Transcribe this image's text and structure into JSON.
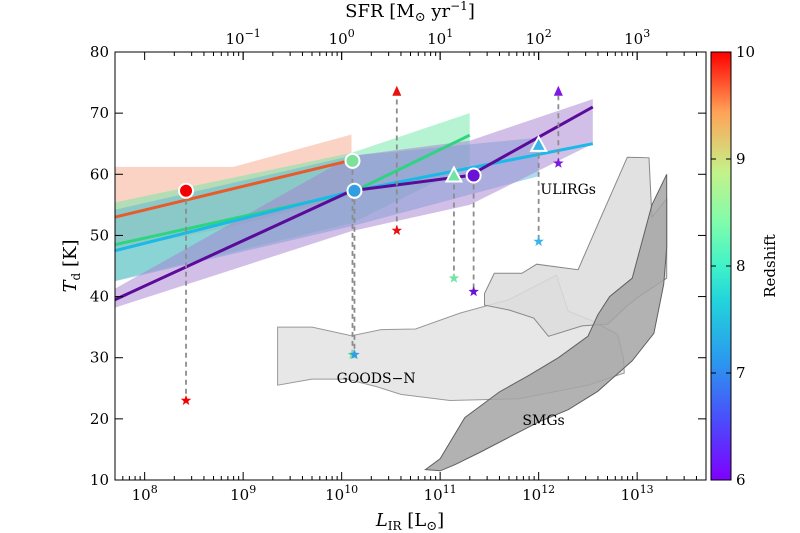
{
  "chart_data": {
    "type": "line",
    "title": "",
    "xlabel": "L_IR [L_⊙]",
    "xlabel_main": "L",
    "xlabel_sub": "IR",
    "xlabel_unit": " [L",
    "xlabel_unit_sub": "⊙",
    "xlabel_close": "]",
    "top_xlabel": "SFR [M_⊙ yr^-1]",
    "top_xlabel_parts": {
      "a": "SFR [M",
      "sun": "⊙",
      "b": " yr",
      "exp": "−1",
      "c": "]"
    },
    "ylabel": "T_d [K]",
    "ylabel_main": "T",
    "ylabel_sub": "d",
    "ylabel_unit": " [K]",
    "xscale": "log",
    "xlim": [
      50000000,
      50000000000000
    ],
    "ylim": [
      10,
      80
    ],
    "x_ticks": [
      {
        "exp": 8,
        "base": "10",
        "sup": "8"
      },
      {
        "exp": 9,
        "base": "10",
        "sup": "9"
      },
      {
        "exp": 10,
        "base": "10",
        "sup": "10"
      },
      {
        "exp": 11,
        "base": "10",
        "sup": "11"
      },
      {
        "exp": 12,
        "base": "10",
        "sup": "12"
      },
      {
        "exp": 13,
        "base": "10",
        "sup": "13"
      }
    ],
    "y_ticks": [
      "10",
      "20",
      "30",
      "40",
      "50",
      "60",
      "70",
      "80"
    ],
    "top_ticks": [
      {
        "sfr_exp": -1,
        "base": "10",
        "sup": "−1"
      },
      {
        "sfr_exp": 0,
        "base": "10",
        "sup": "0"
      },
      {
        "sfr_exp": 1,
        "base": "10",
        "sup": "1"
      },
      {
        "sfr_exp": 2,
        "base": "10",
        "sup": "2"
      },
      {
        "sfr_exp": 3,
        "base": "10",
        "sup": "3"
      }
    ],
    "sfr_to_lir_offset": 10,
    "colorbar": {
      "label": "Redshift",
      "min": 6,
      "max": 10,
      "ticks": [
        "6",
        "7",
        "8",
        "9",
        "10"
      ]
    },
    "series": [
      {
        "z": 10,
        "color": "#e85a2a",
        "band_color": "#f7a789",
        "line": [
          [
            7.7,
            53
          ],
          [
            10.1,
            62.3
          ]
        ],
        "band": [
          [
            7.7,
            47.6,
            61.2
          ],
          [
            8.9,
            51.5,
            61.2
          ],
          [
            10.1,
            56.5,
            66.5
          ]
        ]
      },
      {
        "z": 8,
        "color": "#2ed47f",
        "band_color": "#6de8a8",
        "line": [
          [
            7.7,
            48.5
          ],
          [
            10.1,
            57
          ],
          [
            11.3,
            66.4
          ]
        ],
        "band": [
          [
            7.7,
            42.6,
            55.4
          ],
          [
            10.1,
            52,
            63.5
          ],
          [
            11.3,
            61.5,
            70
          ]
        ]
      },
      {
        "z": 7,
        "color": "#1ab9e6",
        "band_color": "#5fb6d9",
        "line": [
          [
            7.7,
            47.5
          ],
          [
            10.1,
            57.2
          ],
          [
            12.55,
            65
          ]
        ],
        "band": [
          [
            7.7,
            42.5,
            54.2
          ],
          [
            10.1,
            51.5,
            63
          ],
          [
            12.0,
            59.7,
            66
          ]
        ]
      },
      {
        "z": 6,
        "color": "#5b0a99",
        "band_color": "#a57fd0",
        "line": [
          [
            7.7,
            39.5
          ],
          [
            10.1,
            57.3
          ],
          [
            11.3,
            59.8
          ],
          [
            12.55,
            71
          ]
        ],
        "band": [
          [
            7.7,
            38.2,
            41.3
          ],
          [
            10.1,
            50.7,
            63
          ],
          [
            11.3,
            55,
            65.5
          ],
          [
            12.55,
            65,
            72.3
          ]
        ]
      }
    ],
    "markers": [
      {
        "z": 10,
        "shape": "circle",
        "color": "#f40000",
        "x": 8.42,
        "y": 57.3,
        "star_y": 23
      },
      {
        "z": 8.3,
        "shape": "circle",
        "color": "#7de19c",
        "x": 10.11,
        "y": 62.2,
        "star_y": 30.5
      },
      {
        "z": 7,
        "shape": "circle",
        "color": "#2f9ee3",
        "x": 10.13,
        "y": 57.3,
        "star_y": 30.5
      },
      {
        "z": 8,
        "shape": "triangle",
        "color": "#73e3a6",
        "x": 11.14,
        "y": 59.8,
        "star_y": 43
      },
      {
        "z": 6,
        "shape": "circle",
        "color": "#6a12d6",
        "x": 11.34,
        "y": 59.8,
        "star_y": 40.8
      },
      {
        "z": 7,
        "shape": "triangle",
        "color": "#3ab5ea",
        "x": 12.0,
        "y": 64.8,
        "star_y": 49
      }
    ],
    "upper_limits": [
      {
        "z": 10,
        "color": "#e8110e",
        "x": 10.56,
        "star_y": 50.8,
        "arrow_y": 73.5
      },
      {
        "z": 6,
        "color": "#7f18e0",
        "x": 12.2,
        "star_y": 61.8,
        "arrow_y": 73.5
      }
    ],
    "regions": [
      {
        "name": "GOODS-N",
        "label": "GOODS−N",
        "label_pos": [
          10.35,
          25.9
        ],
        "fill": "#e3e3e3",
        "edge": "#999999",
        "polygon": [
          [
            9.35,
            35
          ],
          [
            9.7,
            35
          ],
          [
            10.1,
            33.6
          ],
          [
            10.4,
            34.6
          ],
          [
            10.75,
            34.7
          ],
          [
            11.2,
            37.3
          ],
          [
            11.7,
            39.5
          ],
          [
            12.18,
            43.5
          ],
          [
            12.3,
            37.6
          ],
          [
            12.55,
            36
          ],
          [
            12.8,
            33.8
          ],
          [
            12.86,
            30
          ],
          [
            12.87,
            27.5
          ],
          [
            12.5,
            25.5
          ],
          [
            11.8,
            23.3
          ],
          [
            11.1,
            23
          ],
          [
            10.6,
            24
          ],
          [
            10.35,
            25.3
          ],
          [
            10.05,
            26.5
          ],
          [
            9.7,
            26.5
          ],
          [
            9.35,
            25.5
          ]
        ]
      },
      {
        "name": "ULIRGs",
        "label": "ULIRGs",
        "label_pos": [
          12.3,
          56.8
        ],
        "fill": "#dcdcdc",
        "edge": "#888888",
        "polygon": [
          [
            11.45,
            40.5
          ],
          [
            11.55,
            43.8
          ],
          [
            11.83,
            43.8
          ],
          [
            11.98,
            45.3
          ],
          [
            12.4,
            44.4
          ],
          [
            12.62,
            52.5
          ],
          [
            12.9,
            62.8
          ],
          [
            13.12,
            62.7
          ],
          [
            13.15,
            53
          ],
          [
            13.3,
            56
          ],
          [
            13.3,
            43
          ],
          [
            13.25,
            42.5
          ],
          [
            13.0,
            39.8
          ],
          [
            12.9,
            38.5
          ],
          [
            12.7,
            35.5
          ],
          [
            12.44,
            35.2
          ],
          [
            12.1,
            33.5
          ],
          [
            11.95,
            36.5
          ],
          [
            11.7,
            37.8
          ],
          [
            11.45,
            38.6
          ]
        ]
      },
      {
        "name": "SMGs",
        "label": "SMGs",
        "label_pos": [
          12.05,
          19
        ],
        "fill": "#a5a5a5",
        "edge": "#5f5f5f",
        "polygon": [
          [
            10.85,
            11.7
          ],
          [
            11.0,
            13.5
          ],
          [
            11.25,
            20.2
          ],
          [
            11.6,
            24.4
          ],
          [
            11.9,
            27.1
          ],
          [
            12.2,
            30
          ],
          [
            12.5,
            33.5
          ],
          [
            12.6,
            37
          ],
          [
            12.72,
            40
          ],
          [
            12.95,
            43
          ],
          [
            13.15,
            55
          ],
          [
            13.3,
            60
          ],
          [
            13.3,
            48
          ],
          [
            13.27,
            42
          ],
          [
            13.17,
            34
          ],
          [
            12.95,
            29.5
          ],
          [
            12.6,
            24.5
          ],
          [
            12.3,
            21.5
          ],
          [
            12.0,
            19.5
          ],
          [
            11.7,
            17
          ],
          [
            11.4,
            14.5
          ],
          [
            11.15,
            12.5
          ],
          [
            11.0,
            11.5
          ]
        ]
      }
    ]
  }
}
